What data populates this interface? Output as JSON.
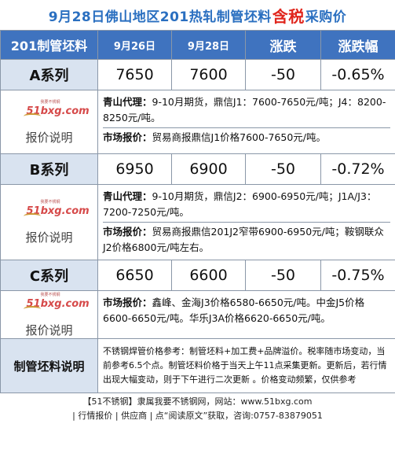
{
  "title": {
    "part1": "9月28日佛山地区201热轧制管坯料",
    "highlight": "含税",
    "part2": "采购价"
  },
  "header": {
    "col1": "201制管坯料",
    "col2": "9月26日",
    "col3": "9月28日",
    "col4": "涨跌",
    "col5": "涨跌幅"
  },
  "logo": {
    "small": "我要不锈钢",
    "main": "51bxg.com"
  },
  "note_label": "报价说明",
  "rows": [
    {
      "name": "A系列",
      "p1": "7650",
      "p2": "7600",
      "chg": "-50",
      "pct": "-0.65%",
      "qs_label": "青山代理：",
      "qs_text": "9-10月期货，鼎信J1：7600-7650元/吨；J4：8200-8250元/吨。",
      "mk_label": "市场报价：",
      "mk_text": "贸易商报鼎信J1价格7600-7650元/吨。"
    },
    {
      "name": "B系列",
      "p1": "6950",
      "p2": "6900",
      "chg": "-50",
      "pct": "-0.72%",
      "qs_label": "青山代理：",
      "qs_text": "9-10月期货，鼎信J2：6900-6950元/吨；J1A/J3：7200-7250元/吨。",
      "mk_label": "市场报价：",
      "mk_text": "贸易商报鼎信201J2窄带6900-6950元/吨；鞍钢联众J2价格6800元/吨左右。"
    },
    {
      "name": "C系列",
      "p1": "6650",
      "p2": "6600",
      "chg": "-50",
      "pct": "-0.75%",
      "mk_label": "市场报价：",
      "mk_text": "鑫峰、金海J3价格6580-6650元/吨。中金J5价格6600-6650元/吨。华乐J3A价格6620-6650元/吨。"
    }
  ],
  "desc": {
    "label": "制管坯料说明",
    "text": "不锈钢焊管价格参考：制管坯料+加工费+品牌溢价。税率随市场变动，当前参考6.5个点。制管坯料价格于当天上午11点采集更新。更新后，若行情出现大幅变动，则于下午进行二次更新 。价格变动频繁，仅供参考"
  },
  "footer": {
    "line1": "【51不锈钢】隶属我要不锈钢网，网站：www.51bxg.com",
    "line2": "| 行情报价 | 供应商 | 点“阅读原文”获取，咨询:0757-83879051"
  }
}
